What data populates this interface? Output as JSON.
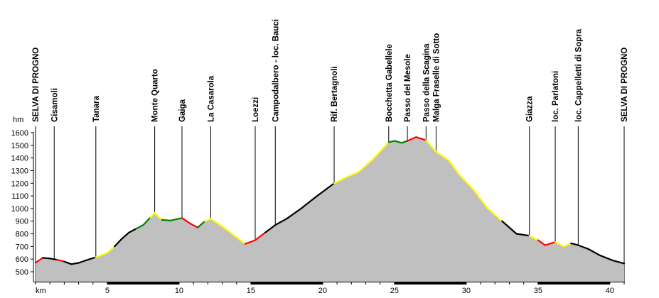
{
  "chart_data": {
    "type": "area",
    "title": "",
    "xlabel": "km",
    "ylabel": "hm",
    "xlim": [
      0,
      41
    ],
    "ylim": [
      500,
      1600
    ],
    "x_ticks": [
      5,
      10,
      15,
      20,
      25,
      30,
      35,
      40
    ],
    "y_ticks": [
      500,
      600,
      700,
      800,
      900,
      1000,
      1100,
      1200,
      1300,
      1400,
      1500,
      1600
    ],
    "grid": false,
    "fill_color": "#c0c0c0",
    "gradient_colors": {
      "flat": "#000000",
      "moderate": "#ffff00",
      "steep": "#ff0000",
      "descent": "#008000"
    },
    "waypoints": [
      {
        "name": "SELVA DI PROGNO",
        "km": 0.0
      },
      {
        "name": "Cisamoli",
        "km": 1.3
      },
      {
        "name": "Tanara",
        "km": 4.2
      },
      {
        "name": "Monte Quarto",
        "km": 8.3
      },
      {
        "name": "Gaiga",
        "km": 10.2
      },
      {
        "name": "La Casarola",
        "km": 12.2
      },
      {
        "name": "Loezzi",
        "km": 15.3
      },
      {
        "name": "Campodalbero - loc. Bauci",
        "km": 16.7
      },
      {
        "name": "Rif. Bertagnoli",
        "km": 20.8
      },
      {
        "name": "Bocchetta Gabellele",
        "km": 24.6
      },
      {
        "name": "Passo del Mesole",
        "km": 25.9
      },
      {
        "name": "Passo della Scagina",
        "km": 27.2
      },
      {
        "name": "Malga Fraselle di Sotto",
        "km": 27.9
      },
      {
        "name": "Giazza",
        "km": 34.4
      },
      {
        "name": "loc. Parlatoni",
        "km": 36.2
      },
      {
        "name": "loc. Cappelletti di Sopra",
        "km": 37.8
      },
      {
        "name": "SELVA DI PROGNO",
        "km": 41.0
      }
    ],
    "profile": [
      {
        "x": 0.0,
        "y": 570,
        "c": "green"
      },
      {
        "x": 0.5,
        "y": 610,
        "c": "red"
      },
      {
        "x": 1.0,
        "y": 605,
        "c": "black"
      },
      {
        "x": 1.5,
        "y": 595,
        "c": "black"
      },
      {
        "x": 2.0,
        "y": 580,
        "c": "red"
      },
      {
        "x": 2.5,
        "y": 560,
        "c": "black"
      },
      {
        "x": 3.0,
        "y": 570,
        "c": "black"
      },
      {
        "x": 3.5,
        "y": 590,
        "c": "black"
      },
      {
        "x": 4.2,
        "y": 615,
        "c": "black"
      },
      {
        "x": 5.0,
        "y": 650,
        "c": "yellow"
      },
      {
        "x": 5.5,
        "y": 700,
        "c": "yellow"
      },
      {
        "x": 6.0,
        "y": 760,
        "c": "black"
      },
      {
        "x": 6.5,
        "y": 810,
        "c": "black"
      },
      {
        "x": 7.0,
        "y": 840,
        "c": "black"
      },
      {
        "x": 7.5,
        "y": 870,
        "c": "green"
      },
      {
        "x": 8.0,
        "y": 930,
        "c": "green"
      },
      {
        "x": 8.3,
        "y": 965,
        "c": "yellow"
      },
      {
        "x": 8.8,
        "y": 910,
        "c": "yellow"
      },
      {
        "x": 9.4,
        "y": 905,
        "c": "green"
      },
      {
        "x": 10.2,
        "y": 925,
        "c": "green"
      },
      {
        "x": 10.8,
        "y": 880,
        "c": "red"
      },
      {
        "x": 11.3,
        "y": 850,
        "c": "red"
      },
      {
        "x": 11.8,
        "y": 900,
        "c": "green"
      },
      {
        "x": 12.2,
        "y": 920,
        "c": "yellow"
      },
      {
        "x": 13.0,
        "y": 860,
        "c": "yellow"
      },
      {
        "x": 13.8,
        "y": 790,
        "c": "yellow"
      },
      {
        "x": 14.6,
        "y": 720,
        "c": "yellow"
      },
      {
        "x": 15.3,
        "y": 750,
        "c": "red"
      },
      {
        "x": 16.0,
        "y": 810,
        "c": "red"
      },
      {
        "x": 16.7,
        "y": 870,
        "c": "black"
      },
      {
        "x": 17.5,
        "y": 920,
        "c": "black"
      },
      {
        "x": 18.5,
        "y": 1000,
        "c": "black"
      },
      {
        "x": 19.5,
        "y": 1090,
        "c": "black"
      },
      {
        "x": 20.8,
        "y": 1200,
        "c": "black"
      },
      {
        "x": 21.5,
        "y": 1240,
        "c": "yellow"
      },
      {
        "x": 22.5,
        "y": 1290,
        "c": "yellow"
      },
      {
        "x": 23.5,
        "y": 1390,
        "c": "yellow"
      },
      {
        "x": 24.6,
        "y": 1525,
        "c": "yellow"
      },
      {
        "x": 25.0,
        "y": 1535,
        "c": "green"
      },
      {
        "x": 25.5,
        "y": 1520,
        "c": "green"
      },
      {
        "x": 25.9,
        "y": 1535,
        "c": "green"
      },
      {
        "x": 26.5,
        "y": 1565,
        "c": "red"
      },
      {
        "x": 27.2,
        "y": 1540,
        "c": "red"
      },
      {
        "x": 27.9,
        "y": 1450,
        "c": "yellow"
      },
      {
        "x": 28.8,
        "y": 1380,
        "c": "yellow"
      },
      {
        "x": 29.5,
        "y": 1270,
        "c": "yellow"
      },
      {
        "x": 30.5,
        "y": 1150,
        "c": "yellow"
      },
      {
        "x": 31.5,
        "y": 1000,
        "c": "yellow"
      },
      {
        "x": 32.5,
        "y": 900,
        "c": "yellow"
      },
      {
        "x": 33.5,
        "y": 800,
        "c": "black"
      },
      {
        "x": 34.4,
        "y": 785,
        "c": "black"
      },
      {
        "x": 35.0,
        "y": 750,
        "c": "yellow"
      },
      {
        "x": 35.5,
        "y": 710,
        "c": "red"
      },
      {
        "x": 36.2,
        "y": 735,
        "c": "red"
      },
      {
        "x": 36.8,
        "y": 700,
        "c": "yellow"
      },
      {
        "x": 37.3,
        "y": 725,
        "c": "yellow"
      },
      {
        "x": 37.8,
        "y": 710,
        "c": "black"
      },
      {
        "x": 38.5,
        "y": 680,
        "c": "black"
      },
      {
        "x": 39.3,
        "y": 630,
        "c": "black"
      },
      {
        "x": 40.2,
        "y": 590,
        "c": "black"
      },
      {
        "x": 41.0,
        "y": 565,
        "c": "black"
      }
    ]
  }
}
